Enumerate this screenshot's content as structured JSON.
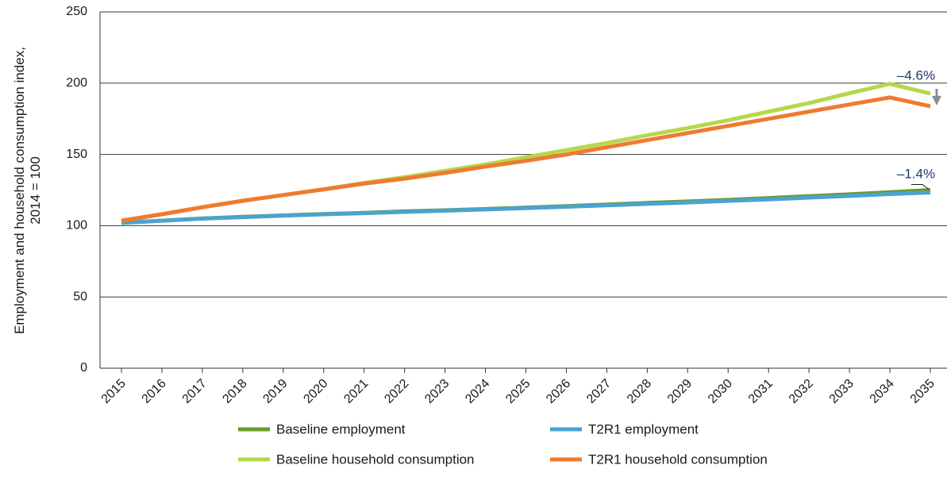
{
  "chart_data": {
    "type": "line",
    "ylabel_line1": "Employment and household consumption index,",
    "ylabel_line2": "2014 = 100",
    "ylim": [
      0,
      250
    ],
    "yticks": [
      0,
      50,
      100,
      150,
      200,
      250
    ],
    "grid": true,
    "legend_position": "bottom",
    "x": [
      "2015",
      "2016",
      "2017",
      "2018",
      "2019",
      "2020",
      "2021",
      "2022",
      "2023",
      "2024",
      "2025",
      "2026",
      "2027",
      "2028",
      "2029",
      "2030",
      "2031",
      "2032",
      "2033",
      "2034",
      "2035"
    ],
    "series": [
      {
        "name": "Baseline employment",
        "color": "#6a9a2a",
        "values": [
          102,
          103.5,
          105,
          106.2,
          107.2,
          108.2,
          109,
          110,
          110.8,
          111.7,
          112.7,
          113.7,
          114.8,
          115.9,
          117,
          118.1,
          119.4,
          120.7,
          122,
          123.5,
          125
        ]
      },
      {
        "name": "T2R1 employment",
        "color": "#4aa3cf",
        "values": [
          102,
          103.5,
          105,
          106,
          107,
          108,
          108.8,
          109.7,
          110.5,
          111.4,
          112.3,
          113.3,
          114.3,
          115.3,
          116.3,
          117.4,
          118.5,
          119.7,
          120.9,
          122.2,
          123.3
        ]
      },
      {
        "name": "Baseline household consumption",
        "color": "#b5d84a",
        "values": [
          103.5,
          108,
          113,
          117.5,
          121.5,
          125.5,
          130,
          134,
          138.5,
          143,
          148,
          153,
          158,
          163.5,
          168.5,
          174,
          180,
          186,
          193,
          199.5,
          192.7
        ]
      },
      {
        "name": "T2R1 household consumption",
        "color": "#f07a30",
        "values": [
          103.5,
          108,
          113,
          117.5,
          121.5,
          125.5,
          129.5,
          133,
          137,
          141.5,
          145.5,
          150,
          155,
          160,
          165,
          170,
          175,
          180,
          185,
          190,
          183.8
        ]
      }
    ],
    "annotations": [
      {
        "text": "–4.6%",
        "x": "2035",
        "y": 199
      },
      {
        "text": "–1.4%",
        "x": "2035",
        "y": 130
      }
    ]
  },
  "legend": [
    {
      "label": "Baseline employment",
      "color": "#6a9a2a"
    },
    {
      "label": "T2R1 employment",
      "color": "#4aa3cf"
    },
    {
      "label": "Baseline household consumption",
      "color": "#b5d84a"
    },
    {
      "label": "T2R1 household consumption",
      "color": "#f07a30"
    }
  ],
  "colors": {
    "arrow": "#8c8c8c",
    "annotation_text": "#1f3864",
    "axis": "#333333"
  }
}
